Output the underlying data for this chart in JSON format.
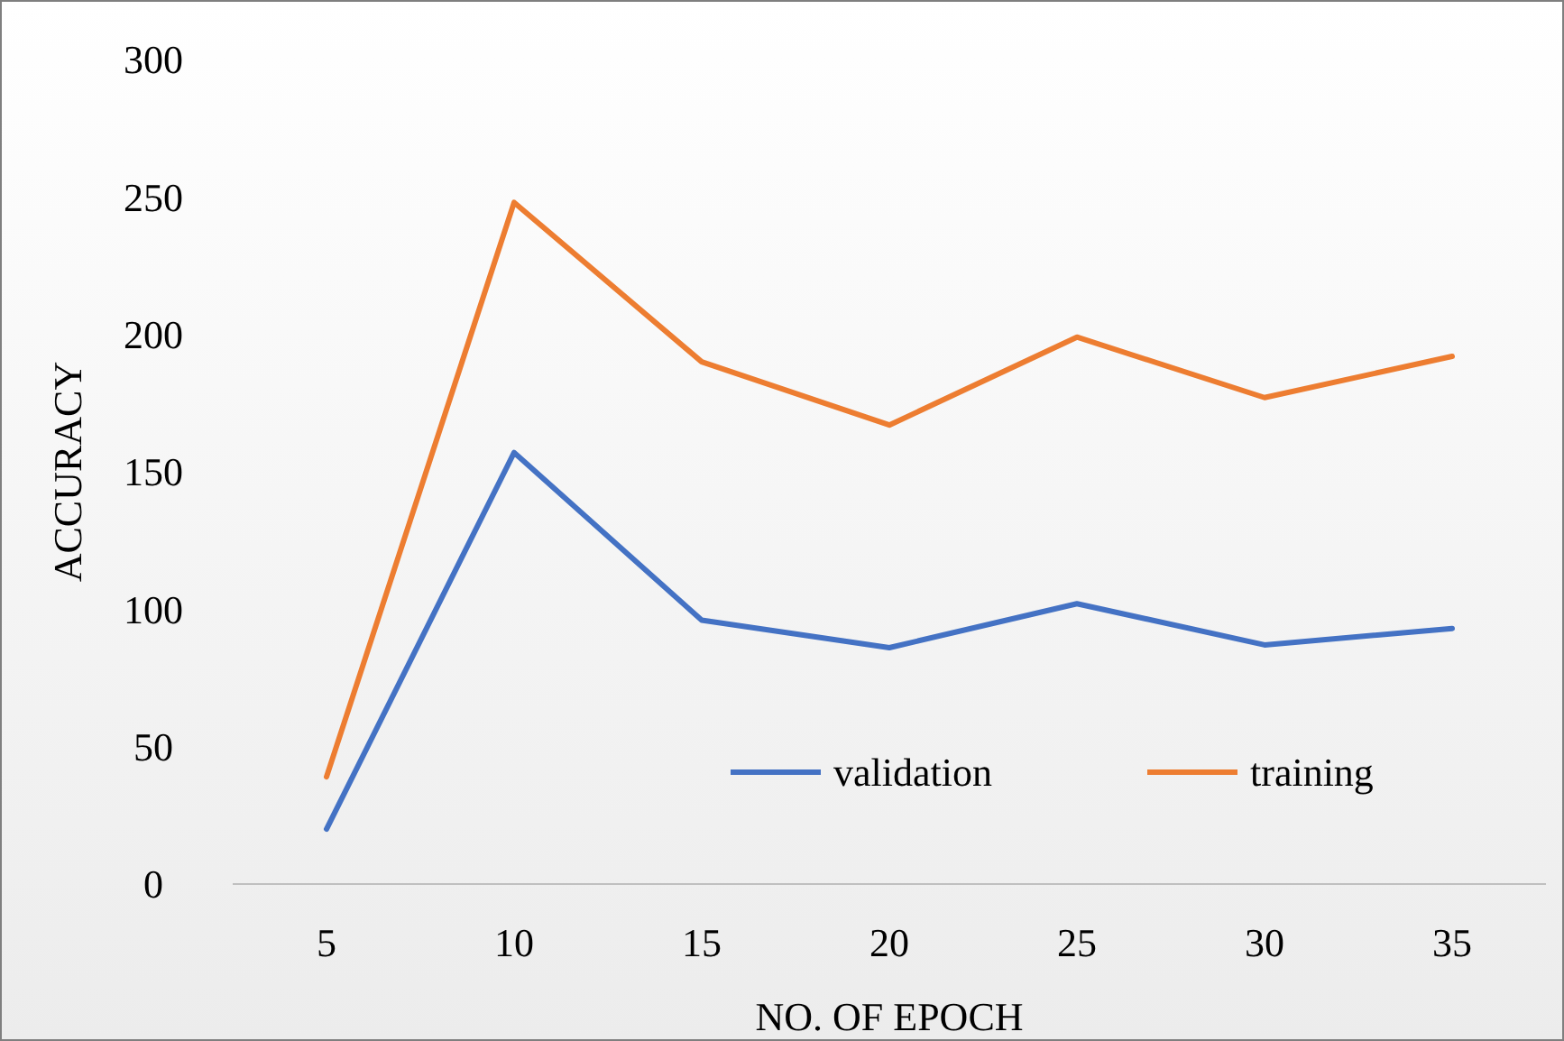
{
  "chart_data": {
    "type": "line",
    "xlabel": "NO. OF EPOCH",
    "ylabel": "ACCURACY",
    "categories": [
      "5",
      "10",
      "15",
      "20",
      "25",
      "30",
      "35"
    ],
    "series": [
      {
        "name": "validation",
        "color": "#4472c4",
        "values": [
          20,
          157,
          96,
          86,
          102,
          87,
          93
        ]
      },
      {
        "name": "training",
        "color": "#ed7d31",
        "values": [
          39,
          248,
          190,
          167,
          199,
          177,
          192
        ]
      }
    ],
    "ylim": [
      0,
      300
    ],
    "yticks": [
      0,
      50,
      100,
      150,
      200,
      250,
      300
    ],
    "grid": false,
    "legend": "bottom",
    "marker": "none",
    "line_style": "solid"
  }
}
